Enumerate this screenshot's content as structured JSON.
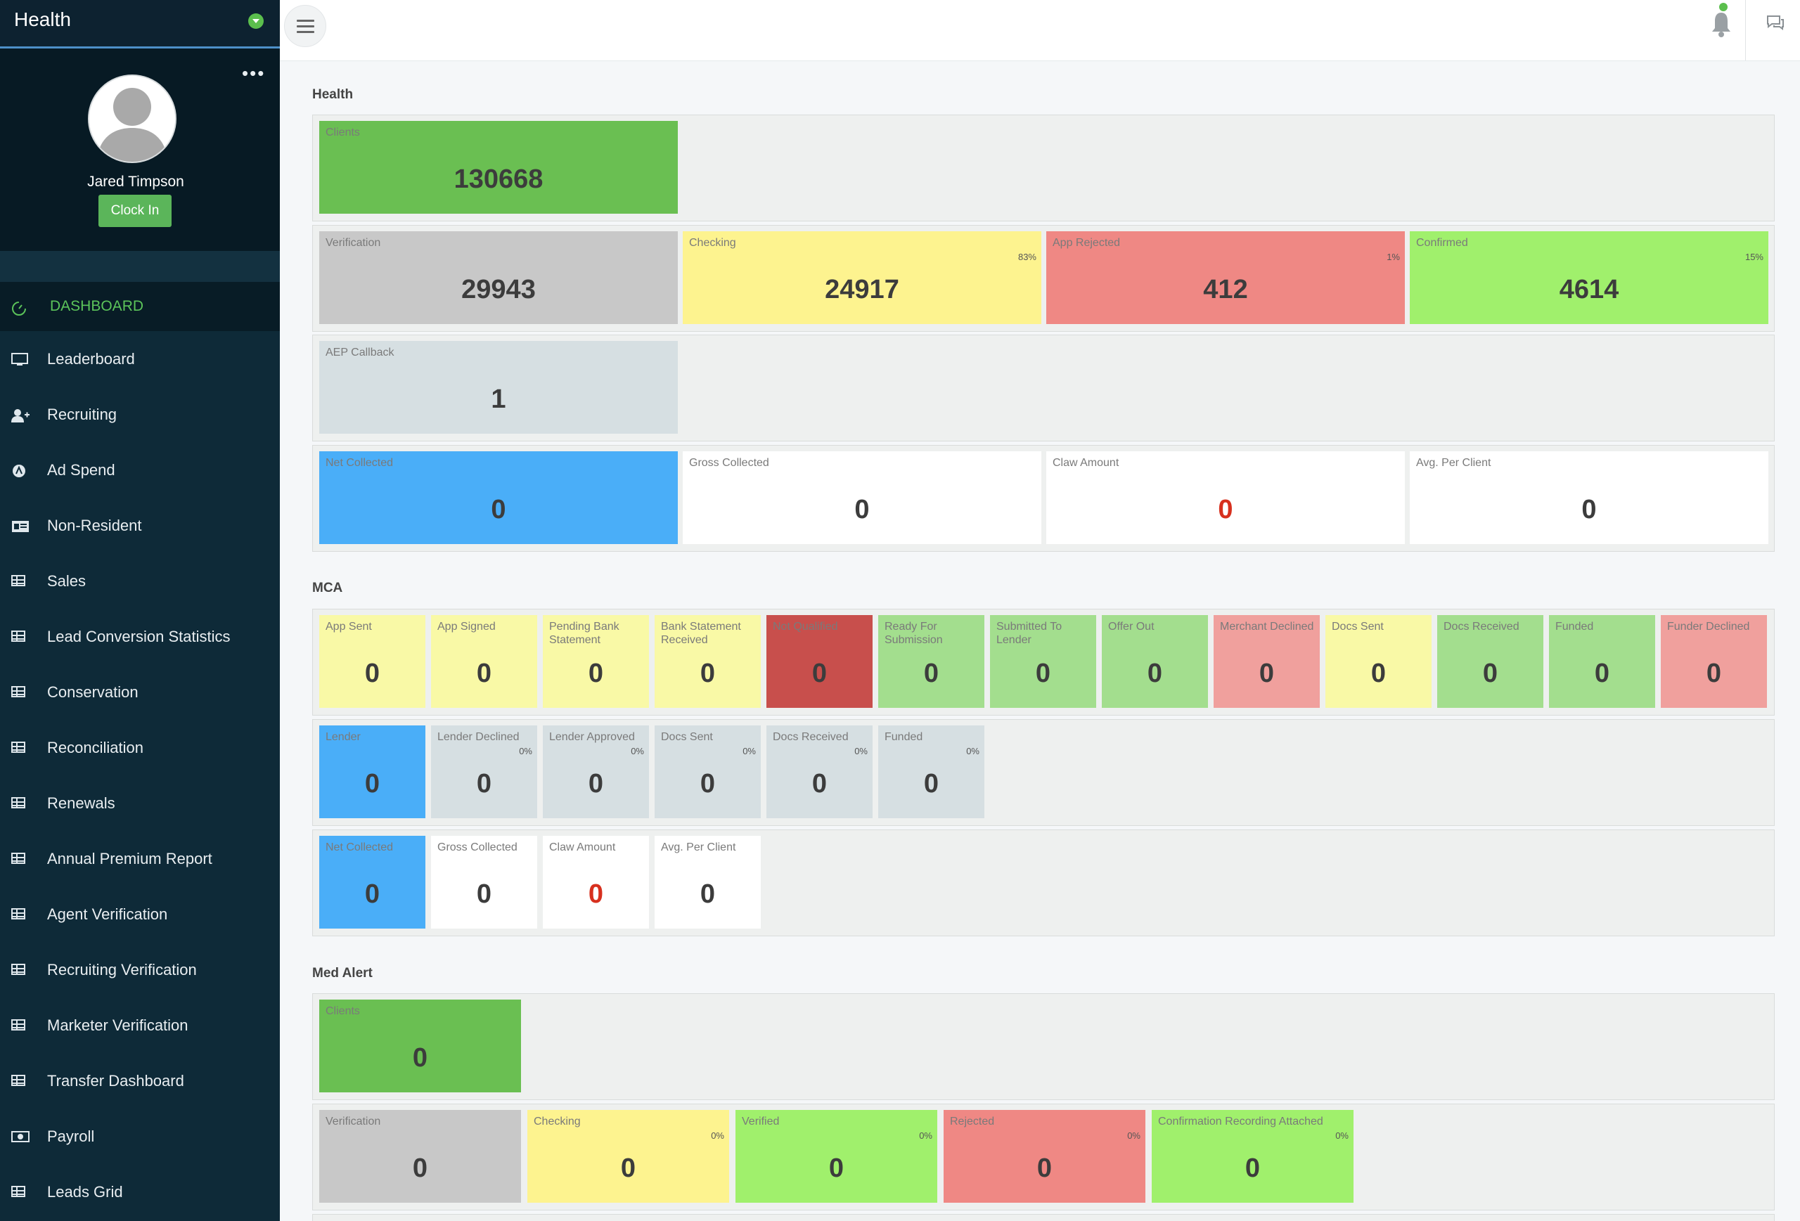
{
  "sidebar": {
    "brand": "Health",
    "user_name": "Jared Timpson",
    "clock_in_label": "Clock In",
    "more_label": "•••",
    "nav": [
      {
        "label": "DASHBOARD",
        "icon": "dashboard-icon",
        "active": true
      },
      {
        "label": "Leaderboard",
        "icon": "monitor-icon"
      },
      {
        "label": "Recruiting",
        "icon": "user-plus-icon"
      },
      {
        "label": "Ad Spend",
        "icon": "ad-icon"
      },
      {
        "label": "Non-Resident",
        "icon": "id-card-icon"
      },
      {
        "label": "Sales",
        "icon": "table-icon"
      },
      {
        "label": "Lead Conversion Statistics",
        "icon": "table-icon"
      },
      {
        "label": "Conservation",
        "icon": "table-icon"
      },
      {
        "label": "Reconciliation",
        "icon": "table-icon"
      },
      {
        "label": "Renewals",
        "icon": "table-icon"
      },
      {
        "label": "Annual Premium Report",
        "icon": "table-icon"
      },
      {
        "label": "Agent Verification",
        "icon": "table-icon"
      },
      {
        "label": "Recruiting Verification",
        "icon": "table-icon"
      },
      {
        "label": "Marketer Verification",
        "icon": "table-icon"
      },
      {
        "label": "Transfer Dashboard",
        "icon": "table-icon"
      },
      {
        "label": "Payroll",
        "icon": "money-icon"
      },
      {
        "label": "Leads Grid",
        "icon": "table-icon"
      }
    ]
  },
  "sections": {
    "health": {
      "title": "Health",
      "clients": {
        "label": "Clients",
        "value": "130668"
      },
      "verification": {
        "label": "Verification",
        "value": "29943"
      },
      "checking": {
        "label": "Checking",
        "value": "24917",
        "pct": "83%"
      },
      "app_rejected": {
        "label": "App Rejected",
        "value": "412",
        "pct": "1%"
      },
      "confirmed": {
        "label": "Confirmed",
        "value": "4614",
        "pct": "15%"
      },
      "aep_callback": {
        "label": "AEP Callback",
        "value": "1"
      },
      "net_collected": {
        "label": "Net Collected",
        "value": "0"
      },
      "gross_collected": {
        "label": "Gross Collected",
        "value": "0"
      },
      "claw_amount": {
        "label": "Claw Amount",
        "value": "0"
      },
      "avg_per_client": {
        "label": "Avg. Per Client",
        "value": "0"
      }
    },
    "mca": {
      "title": "MCA",
      "row1": [
        {
          "label": "App Sent",
          "value": "0"
        },
        {
          "label": "App Signed",
          "value": "0"
        },
        {
          "label": "Pending Bank Statement",
          "value": "0"
        },
        {
          "label": "Bank Statement Received",
          "value": "0"
        },
        {
          "label": "Not Qualified",
          "value": "0"
        },
        {
          "label": "Ready For Submission",
          "value": "0"
        },
        {
          "label": "Submitted To Lender",
          "value": "0"
        },
        {
          "label": "Offer Out",
          "value": "0"
        },
        {
          "label": "Merchant Declined",
          "value": "0"
        },
        {
          "label": "Docs Sent",
          "value": "0"
        },
        {
          "label": "Docs Received",
          "value": "0"
        },
        {
          "label": "Funded",
          "value": "0"
        },
        {
          "label": "Funder Declined",
          "value": "0"
        }
      ],
      "row2": [
        {
          "label": "Lender",
          "value": "0",
          "pct": ""
        },
        {
          "label": "Lender Declined",
          "value": "0",
          "pct": "0%"
        },
        {
          "label": "Lender Approved",
          "value": "0",
          "pct": "0%"
        },
        {
          "label": "Docs Sent",
          "value": "0",
          "pct": "0%"
        },
        {
          "label": "Docs Received",
          "value": "0",
          "pct": "0%"
        },
        {
          "label": "Funded",
          "value": "0",
          "pct": "0%"
        }
      ],
      "row3": [
        {
          "label": "Net Collected",
          "value": "0"
        },
        {
          "label": "Gross Collected",
          "value": "0"
        },
        {
          "label": "Claw Amount",
          "value": "0"
        },
        {
          "label": "Avg. Per Client",
          "value": "0"
        }
      ]
    },
    "med_alert": {
      "title": "Med Alert",
      "clients": {
        "label": "Clients",
        "value": "0"
      },
      "row2": [
        {
          "label": "Verification",
          "value": "0",
          "pct": ""
        },
        {
          "label": "Checking",
          "value": "0",
          "pct": "0%"
        },
        {
          "label": "Verified",
          "value": "0",
          "pct": "0%"
        },
        {
          "label": "Rejected",
          "value": "0",
          "pct": "0%"
        },
        {
          "label": "Confirmation Recording Attached",
          "value": "0",
          "pct": "0%"
        }
      ]
    }
  },
  "colors": {
    "sidebar_bg": "#0e2a38",
    "accent_green": "#5bbf4d",
    "claw_red": "#d7301e"
  }
}
